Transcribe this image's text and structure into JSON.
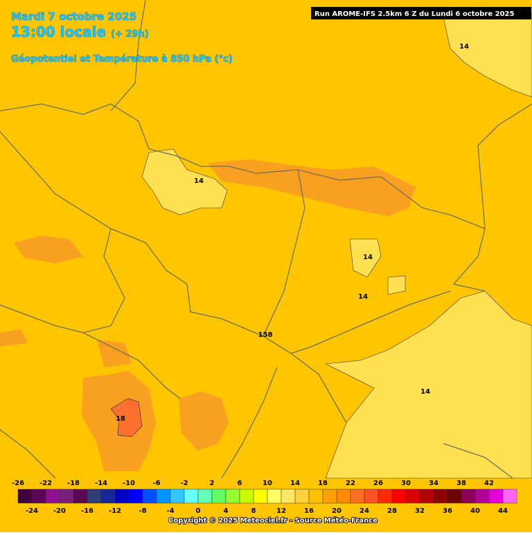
{
  "header": {
    "date": "Mardi 7 octobre 2025",
    "time": "13:00 locale",
    "lead": "(+ 29h)",
    "field": "Géopotentiel et Température à 850 hPa (°c)",
    "run": "Run AROME-IFS 2.5km 6 Z du Lundi 6 octobre 2025"
  },
  "map": {
    "contour_labels": [
      "14",
      "14",
      "14",
      "14",
      "158",
      "14",
      "18"
    ]
  },
  "legend": {
    "ticks": [
      -26,
      -24,
      -22,
      -20,
      -18,
      -16,
      -14,
      -12,
      -10,
      -8,
      -6,
      -4,
      -2,
      0,
      2,
      4,
      6,
      8,
      10,
      12,
      14,
      16,
      18,
      20,
      22,
      24,
      26,
      28,
      30,
      32,
      34,
      36,
      38,
      40,
      42,
      44
    ],
    "colors": [
      "#40003c",
      "#600058",
      "#8c1090",
      "#7a1e7a",
      "#5a0a50",
      "#303c78",
      "#142896",
      "#0000c8",
      "#0000ff",
      "#0050ff",
      "#0096ff",
      "#32c8ff",
      "#64ffff",
      "#64ffb4",
      "#64ff64",
      "#96ff32",
      "#c8ff00",
      "#ffff00",
      "#ffff64",
      "#ffe664",
      "#ffd23c",
      "#ffc000",
      "#ffa000",
      "#ff8c00",
      "#ff6e1e",
      "#ff5028",
      "#ff2800",
      "#ff0000",
      "#dc0000",
      "#b40000",
      "#8c0000",
      "#6e0000",
      "#8c005a",
      "#b40096",
      "#e600dc",
      "#ff64ff"
    ]
  },
  "footer": {
    "copyright": "Copyright © 2025 Meteociel.fr - Source Météo-France"
  }
}
